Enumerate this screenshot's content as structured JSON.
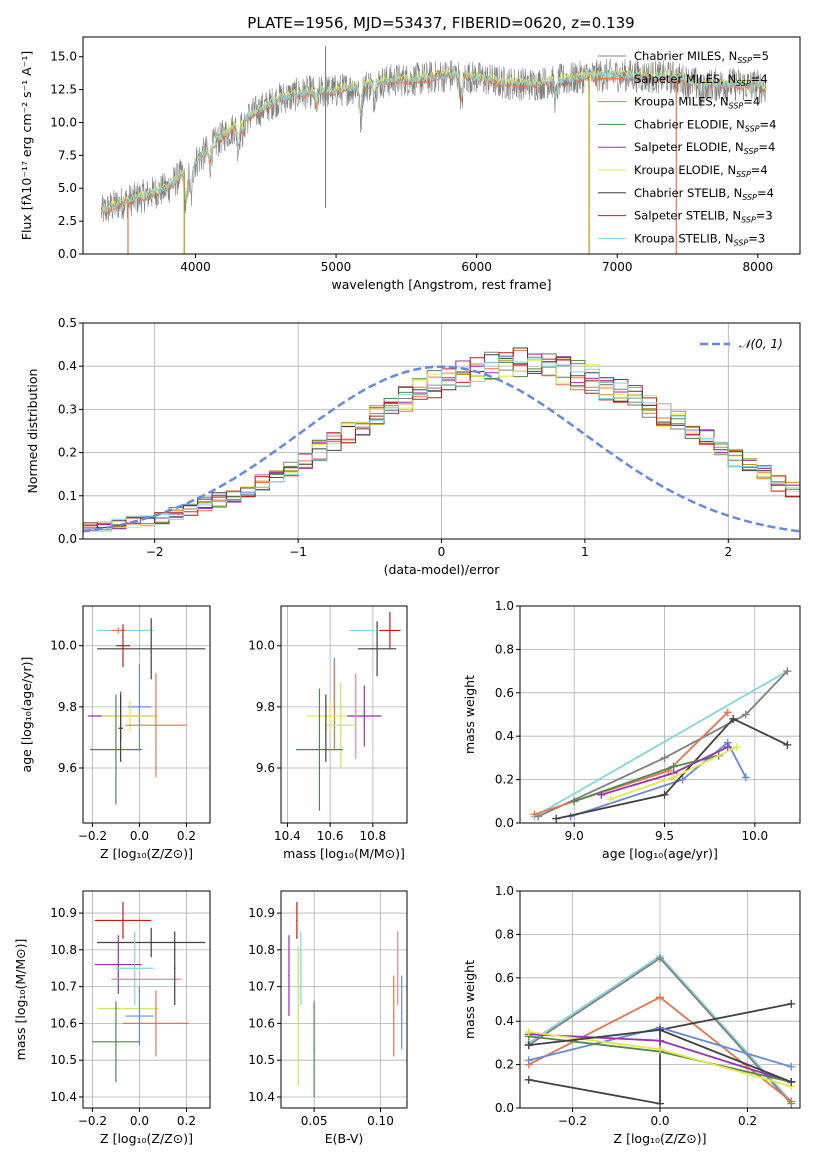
{
  "title": "PLATE=1956, MJD=53437, FIBERID=0620, z=0.139",
  "colors": {
    "chabrier_miles": "#808080",
    "salpeter_miles": "#e8734a",
    "kroupa_miles": "#b8960f",
    "chabrier_elodie": "#4d8a4d",
    "salpeter_elodie": "#9b2fae",
    "kroupa_elodie": "#e6e64c",
    "chabrier_stelib": "#404040",
    "salpeter_stelib": "#c41a1a",
    "kroupa_stelib": "#7fd6e0",
    "blue": "#6689e0",
    "pink": "#f07fa0",
    "lime": "#c8e65a"
  },
  "chart_data": [
    {
      "id": "spectrum",
      "type": "line",
      "xlabel": "wavelength [Angstrom, rest frame]",
      "ylabel": "Flux [fλ10⁻¹⁷ erg cm⁻² s⁻¹ A⁻¹]",
      "xlim": [
        3200,
        8300
      ],
      "ylim": [
        0,
        16.5
      ],
      "xticks": [
        "4000",
        "5000",
        "6000",
        "7000",
        "8000"
      ],
      "yticks": [
        "0.0",
        "2.5",
        "5.0",
        "7.5",
        "10.0",
        "12.5",
        "15.0"
      ],
      "legend_position": "top-right",
      "legend": [
        {
          "label": "Chabrier MILES, N",
          "sub": "SSP",
          "suffix": "=5",
          "color_key": "chabrier_miles"
        },
        {
          "label": "Salpeter MILES, N",
          "sub": "SSP",
          "suffix": "=4",
          "color_key": "salpeter_miles"
        },
        {
          "label": "Kroupa MILES, N",
          "sub": "SSP",
          "suffix": "=4",
          "color_key": "kroupa_miles"
        },
        {
          "label": "Chabrier ELODIE, N",
          "sub": "SSP",
          "suffix": "=4",
          "color_key": "chabrier_elodie"
        },
        {
          "label": "Salpeter ELODIE, N",
          "sub": "SSP",
          "suffix": "=4",
          "color_key": "salpeter_elodie"
        },
        {
          "label": "Kroupa ELODIE, N",
          "sub": "SSP",
          "suffix": "=4",
          "color_key": "kroupa_elodie"
        },
        {
          "label": "Chabrier STELIB, N",
          "sub": "SSP",
          "suffix": "=4",
          "color_key": "chabrier_stelib"
        },
        {
          "label": "Salpeter STELIB, N",
          "sub": "SSP",
          "suffix": "=3",
          "color_key": "salpeter_stelib"
        },
        {
          "label": "Kroupa STELIB, N",
          "sub": "SSP",
          "suffix": "=3",
          "color_key": "kroupa_stelib"
        }
      ],
      "continuum": {
        "x": [
          3330,
          3450,
          3600,
          3800,
          4000,
          4200,
          4400,
          4600,
          4800,
          5000,
          5200,
          5400,
          5600,
          5800,
          6000,
          6200,
          6400,
          6600,
          6800,
          7000,
          7200,
          7400,
          7600,
          7800,
          8000,
          8060
        ],
        "y": [
          3.2,
          3.8,
          4.3,
          5.0,
          7.0,
          9.0,
          10.6,
          11.8,
          12.3,
          12.4,
          12.8,
          13.2,
          13.3,
          13.6,
          13.4,
          13.0,
          12.9,
          13.2,
          13.5,
          13.6,
          13.5,
          13.4,
          12.8,
          12.9,
          12.8,
          12.6
        ]
      },
      "absorption_lines": [
        {
          "x": 3934,
          "depth": 3.0
        },
        {
          "x": 3969,
          "depth": 2.5
        },
        {
          "x": 4102,
          "depth": 1.2
        },
        {
          "x": 4305,
          "depth": 1.8
        },
        {
          "x": 4340,
          "depth": 1.0
        },
        {
          "x": 4861,
          "depth": 1.3
        },
        {
          "x": 5175,
          "depth": 2.5
        },
        {
          "x": 5270,
          "depth": 1.0
        },
        {
          "x": 5893,
          "depth": 2.0
        },
        {
          "x": 6563,
          "depth": 1.5
        },
        {
          "x": 7600,
          "depth": 1.0
        }
      ],
      "spikes": [
        {
          "x": 3520,
          "to": 0,
          "color_key": "salpeter_miles"
        },
        {
          "x": 3920,
          "to": 0,
          "color_key": "kroupa_miles"
        },
        {
          "x": 4925,
          "to": 3.5,
          "color_key": "chabrier_miles"
        },
        {
          "x": 4925,
          "to": 15.8,
          "color_key": "chabrier_miles"
        },
        {
          "x": 6800,
          "to": 0,
          "color_key": "kroupa_miles"
        },
        {
          "x": 7420,
          "to": 0,
          "color_key": "salpeter_miles"
        }
      ]
    },
    {
      "id": "residuals",
      "type": "area",
      "xlabel": "(data-model)/error",
      "ylabel": "Normed distribution",
      "xlim": [
        -2.5,
        2.5
      ],
      "ylim": [
        0,
        0.5
      ],
      "xticks": [
        "−2",
        "−1",
        "0",
        "1",
        "2"
      ],
      "yticks": [
        "0.0",
        "0.1",
        "0.2",
        "0.3",
        "0.4",
        "0.5"
      ],
      "legend_position": "top-right",
      "legend_label": "𝒩(0, 1)",
      "normal_curve": {
        "mean": 0,
        "sigma": 1,
        "color_key": "blue"
      },
      "histogram": {
        "bin_start": -2.5,
        "bin_width": 0.1,
        "base": [
          0.025,
          0.03,
          0.035,
          0.04,
          0.045,
          0.05,
          0.06,
          0.07,
          0.08,
          0.09,
          0.1,
          0.115,
          0.13,
          0.15,
          0.165,
          0.185,
          0.205,
          0.225,
          0.245,
          0.265,
          0.29,
          0.31,
          0.325,
          0.345,
          0.36,
          0.37,
          0.385,
          0.39,
          0.4,
          0.405,
          0.41,
          0.405,
          0.4,
          0.39,
          0.38,
          0.37,
          0.355,
          0.34,
          0.325,
          0.305,
          0.29,
          0.27,
          0.25,
          0.23,
          0.21,
          0.19,
          0.17,
          0.15,
          0.13,
          0.115,
          0.1
        ],
        "series_colors": [
          "chabrier_miles",
          "salpeter_miles",
          "kroupa_miles",
          "chabrier_elodie",
          "salpeter_elodie",
          "kroupa_elodie",
          "chabrier_stelib",
          "salpeter_stelib",
          "kroupa_stelib"
        ]
      }
    },
    {
      "id": "z_age",
      "type": "scatter",
      "xlabel": "Z [log₁₀(Z/Z⊙)]",
      "ylabel": "age  [log₁₀(age/yr)]",
      "xlim": [
        -0.24,
        0.3
      ],
      "ylim": [
        9.42,
        10.13
      ],
      "xticks": [
        "−0.2",
        "0.0",
        "0.2"
      ],
      "yticks": [
        "9.6",
        "9.8",
        "10.0"
      ],
      "points": [
        {
          "x": -0.06,
          "y": 10.05,
          "xerr": 0.12,
          "yerr": 0.0,
          "color_key": "kroupa_stelib"
        },
        {
          "x": -0.09,
          "y": 10.05,
          "xerr": 0.03,
          "yerr": 0.01,
          "color_key": "salpeter_miles"
        },
        {
          "x": -0.07,
          "y": 10.0,
          "xerr": 0.03,
          "yerr": 0.07,
          "color_key": "salpeter_stelib"
        },
        {
          "x": 0.05,
          "y": 9.99,
          "xerr": 0.23,
          "yerr": 0.1,
          "color_key": "chabrier_stelib"
        },
        {
          "x": 0.0,
          "y": 9.8,
          "xerr": 0.05,
          "yerr": 0.14,
          "color_key": "blue"
        },
        {
          "x": -0.08,
          "y": 9.77,
          "xerr": 0.14,
          "yerr": 0.08,
          "color_key": "salpeter_elodie"
        },
        {
          "x": -0.04,
          "y": 9.77,
          "xerr": 0.12,
          "yerr": 0.05,
          "color_key": "kroupa_elodie"
        },
        {
          "x": 0.07,
          "y": 9.74,
          "xerr": 0.13,
          "yerr": 0.17,
          "color_key": "salpeter_miles"
        },
        {
          "x": -0.1,
          "y": 9.66,
          "xerr": 0.11,
          "yerr": 0.18,
          "color_key": "chabrier_elodie"
        },
        {
          "x": -0.08,
          "y": 9.73,
          "xerr": 0.01,
          "yerr": 0.11,
          "color_key": "chabrier_stelib"
        }
      ]
    },
    {
      "id": "mass_age",
      "type": "scatter",
      "xlabel": "mass [log₁₀(M/M⊙)]",
      "xlim": [
        10.37,
        10.96
      ],
      "ylim": [
        9.42,
        10.13
      ],
      "xticks": [
        "10.4",
        "10.6",
        "10.8"
      ],
      "yticks": [
        "9.6",
        "9.8",
        "10.0"
      ],
      "points": [
        {
          "x": 10.75,
          "y": 10.05,
          "xerr": 0.06,
          "yerr": 0.0,
          "color_key": "kroupa_stelib"
        },
        {
          "x": 10.88,
          "y": 10.05,
          "xerr": 0.05,
          "yerr": 0.06,
          "color_key": "salpeter_stelib"
        },
        {
          "x": 10.82,
          "y": 9.99,
          "xerr": 0.09,
          "yerr": 0.09,
          "color_key": "chabrier_stelib"
        },
        {
          "x": 10.62,
          "y": 9.88,
          "xerr": 0.0,
          "yerr": 0.08,
          "color_key": "blue"
        },
        {
          "x": 10.62,
          "y": 9.8,
          "xerr": 0.0,
          "yerr": 0.14,
          "color_key": "salpeter_miles"
        },
        {
          "x": 10.6,
          "y": 9.77,
          "xerr": 0.11,
          "yerr": 0.05,
          "color_key": "kroupa_elodie"
        },
        {
          "x": 10.76,
          "y": 9.77,
          "xerr": 0.08,
          "yerr": 0.1,
          "color_key": "salpeter_elodie"
        },
        {
          "x": 10.72,
          "y": 9.77,
          "xerr": 0.0,
          "yerr": 0.14,
          "color_key": "pink"
        },
        {
          "x": 10.65,
          "y": 9.74,
          "xerr": 0.07,
          "yerr": 0.14,
          "color_key": "lime"
        },
        {
          "x": 10.55,
          "y": 9.66,
          "xerr": 0.11,
          "yerr": 0.2,
          "color_key": "chabrier_elodie"
        },
        {
          "x": 10.58,
          "y": 9.73,
          "xerr": 0.0,
          "yerr": 0.11,
          "color_key": "chabrier_stelib"
        }
      ]
    },
    {
      "id": "weight_age",
      "type": "line",
      "xlabel": "age  [log₁₀(age/yr)]",
      "ylabel": "mass weight",
      "xlim": [
        8.7,
        10.25
      ],
      "ylim": [
        0,
        1
      ],
      "xticks": [
        "9.0",
        "9.5",
        "10.0"
      ],
      "yticks": [
        "0.0",
        "0.2",
        "0.4",
        "0.6",
        "0.8",
        "1.0"
      ],
      "series": [
        {
          "color_key": "kroupa_stelib",
          "x": [
            8.78,
            10.18
          ],
          "y": [
            0.03,
            0.7
          ]
        },
        {
          "color_key": "chabrier_miles",
          "x": [
            8.8,
            9.5,
            9.95,
            10.18
          ],
          "y": [
            0.03,
            0.3,
            0.5,
            0.7
          ]
        },
        {
          "color_key": "salpeter_miles",
          "x": [
            8.78,
            9.52,
            9.85
          ],
          "y": [
            0.04,
            0.24,
            0.51
          ]
        },
        {
          "color_key": "blue",
          "x": [
            8.98,
            9.6,
            9.85,
            9.95
          ],
          "y": [
            0.03,
            0.2,
            0.37,
            0.21
          ]
        },
        {
          "color_key": "chabrier_stelib",
          "x": [
            8.9,
            9.5,
            9.88,
            10.18
          ],
          "y": [
            0.02,
            0.13,
            0.48,
            0.36
          ]
        },
        {
          "color_key": "chabrier_elodie",
          "x": [
            9.0,
            9.55,
            9.8
          ],
          "y": [
            0.1,
            0.26,
            0.31
          ]
        },
        {
          "color_key": "salpeter_elodie",
          "x": [
            9.15,
            9.55,
            9.85
          ],
          "y": [
            0.13,
            0.23,
            0.35
          ]
        },
        {
          "color_key": "kroupa_elodie",
          "x": [
            9.2,
            9.55,
            9.9
          ],
          "y": [
            0.11,
            0.21,
            0.35
          ]
        }
      ]
    },
    {
      "id": "z_mass",
      "type": "scatter",
      "xlabel": "Z [log₁₀(Z/Z⊙)]",
      "ylabel": "mass [log₁₀(M/M⊙)]",
      "xlim": [
        -0.24,
        0.3
      ],
      "ylim": [
        10.37,
        10.96
      ],
      "xticks": [
        "−0.2",
        "0.0",
        "0.2"
      ],
      "yticks": [
        "10.4",
        "10.5",
        "10.6",
        "10.7",
        "10.8",
        "10.9"
      ],
      "points": [
        {
          "x": -0.07,
          "y": 10.88,
          "xerr": 0.12,
          "yerr": 0.05,
          "color_key": "salpeter_stelib"
        },
        {
          "x": 0.05,
          "y": 10.82,
          "xerr": 0.23,
          "yerr": 0.04,
          "color_key": "chabrier_stelib"
        },
        {
          "x": -0.09,
          "y": 10.76,
          "xerr": 0.1,
          "yerr": 0.08,
          "color_key": "salpeter_elodie"
        },
        {
          "x": -0.02,
          "y": 10.75,
          "xerr": 0.08,
          "yerr": 0.1,
          "color_key": "kroupa_stelib"
        },
        {
          "x": 0.03,
          "y": 10.72,
          "xerr": 0.15,
          "yerr": 0.0,
          "color_key": "pink"
        },
        {
          "x": -0.05,
          "y": 10.64,
          "xerr": 0.13,
          "yerr": 0.0,
          "color_key": "lime"
        },
        {
          "x": 0.07,
          "y": 10.6,
          "xerr": 0.14,
          "yerr": 0.09,
          "color_key": "salpeter_miles"
        },
        {
          "x": 0.0,
          "y": 10.62,
          "xerr": 0.06,
          "yerr": 0.08,
          "color_key": "blue"
        },
        {
          "x": -0.1,
          "y": 10.55,
          "xerr": 0.1,
          "yerr": 0.11,
          "color_key": "chabrier_elodie"
        },
        {
          "x": 0.15,
          "y": 10.75,
          "xerr": 0.0,
          "yerr": 0.1,
          "color_key": "chabrier_stelib"
        }
      ]
    },
    {
      "id": "ebv_mass",
      "type": "scatter",
      "xlabel": "E(B-V)",
      "xlim": [
        0.025,
        0.12
      ],
      "ylim": [
        10.37,
        10.96
      ],
      "xticks": [
        "0.05",
        "0.10"
      ],
      "yticks": [
        "10.4",
        "10.5",
        "10.6",
        "10.7",
        "10.8",
        "10.9"
      ],
      "points": [
        {
          "x": 0.037,
          "y": 10.88,
          "yerr": 0.05,
          "color_key": "salpeter_stelib"
        },
        {
          "x": 0.031,
          "y": 10.73,
          "yerr": 0.11,
          "color_key": "salpeter_elodie"
        },
        {
          "x": 0.04,
          "y": 10.75,
          "yerr": 0.1,
          "color_key": "kroupa_stelib"
        },
        {
          "x": 0.038,
          "y": 10.62,
          "yerr": 0.19,
          "color_key": "lime"
        },
        {
          "x": 0.05,
          "y": 10.53,
          "yerr": 0.13,
          "color_key": "chabrier_elodie"
        },
        {
          "x": 0.11,
          "y": 10.62,
          "yerr": 0.11,
          "color_key": "salpeter_miles"
        },
        {
          "x": 0.113,
          "y": 10.75,
          "yerr": 0.1,
          "color_key": "pink"
        },
        {
          "x": 0.116,
          "y": 10.63,
          "yerr": 0.1,
          "color_key": "blue"
        }
      ]
    },
    {
      "id": "weight_z",
      "type": "line",
      "xlabel": "Z [log₁₀(Z/Z⊙)]",
      "ylabel": "mass weight",
      "xlim": [
        -0.32,
        0.32
      ],
      "ylim": [
        0,
        1
      ],
      "xticks": [
        "−0.2",
        "0.0",
        "0.2"
      ],
      "yticks": [
        "0.0",
        "0.2",
        "0.4",
        "0.6",
        "0.8",
        "1.0"
      ],
      "series": [
        {
          "color_key": "kroupa_stelib",
          "x": [
            -0.3,
            0.0,
            0.3
          ],
          "y": [
            0.3,
            0.7,
            0.03
          ]
        },
        {
          "color_key": "chabrier_miles",
          "x": [
            -0.3,
            0.0,
            0.3
          ],
          "y": [
            0.29,
            0.69,
            0.02
          ]
        },
        {
          "color_key": "salpeter_miles",
          "x": [
            -0.3,
            0.0,
            0.3
          ],
          "y": [
            0.2,
            0.51,
            0.03
          ]
        },
        {
          "color_key": "chabrier_stelib",
          "x": [
            -0.3,
            0.0,
            0.0,
            0.3
          ],
          "y": [
            0.13,
            0.02,
            0.36,
            0.48
          ]
        },
        {
          "color_key": "blue",
          "x": [
            -0.3,
            0.0,
            0.3
          ],
          "y": [
            0.22,
            0.37,
            0.19
          ]
        },
        {
          "color_key": "salpeter_elodie",
          "x": [
            -0.3,
            0.0,
            0.3
          ],
          "y": [
            0.34,
            0.31,
            0.12
          ]
        },
        {
          "color_key": "chabrier_elodie",
          "x": [
            -0.3,
            0.0,
            0.3
          ],
          "y": [
            0.33,
            0.26,
            0.12
          ]
        },
        {
          "color_key": "kroupa_elodie",
          "x": [
            -0.3,
            0.0,
            0.3
          ],
          "y": [
            0.35,
            0.27,
            0.1
          ]
        },
        {
          "color_key": "chabrier_stelib",
          "x": [
            -0.3,
            0.0,
            0.3
          ],
          "y": [
            0.29,
            0.36,
            0.12
          ]
        }
      ]
    }
  ]
}
